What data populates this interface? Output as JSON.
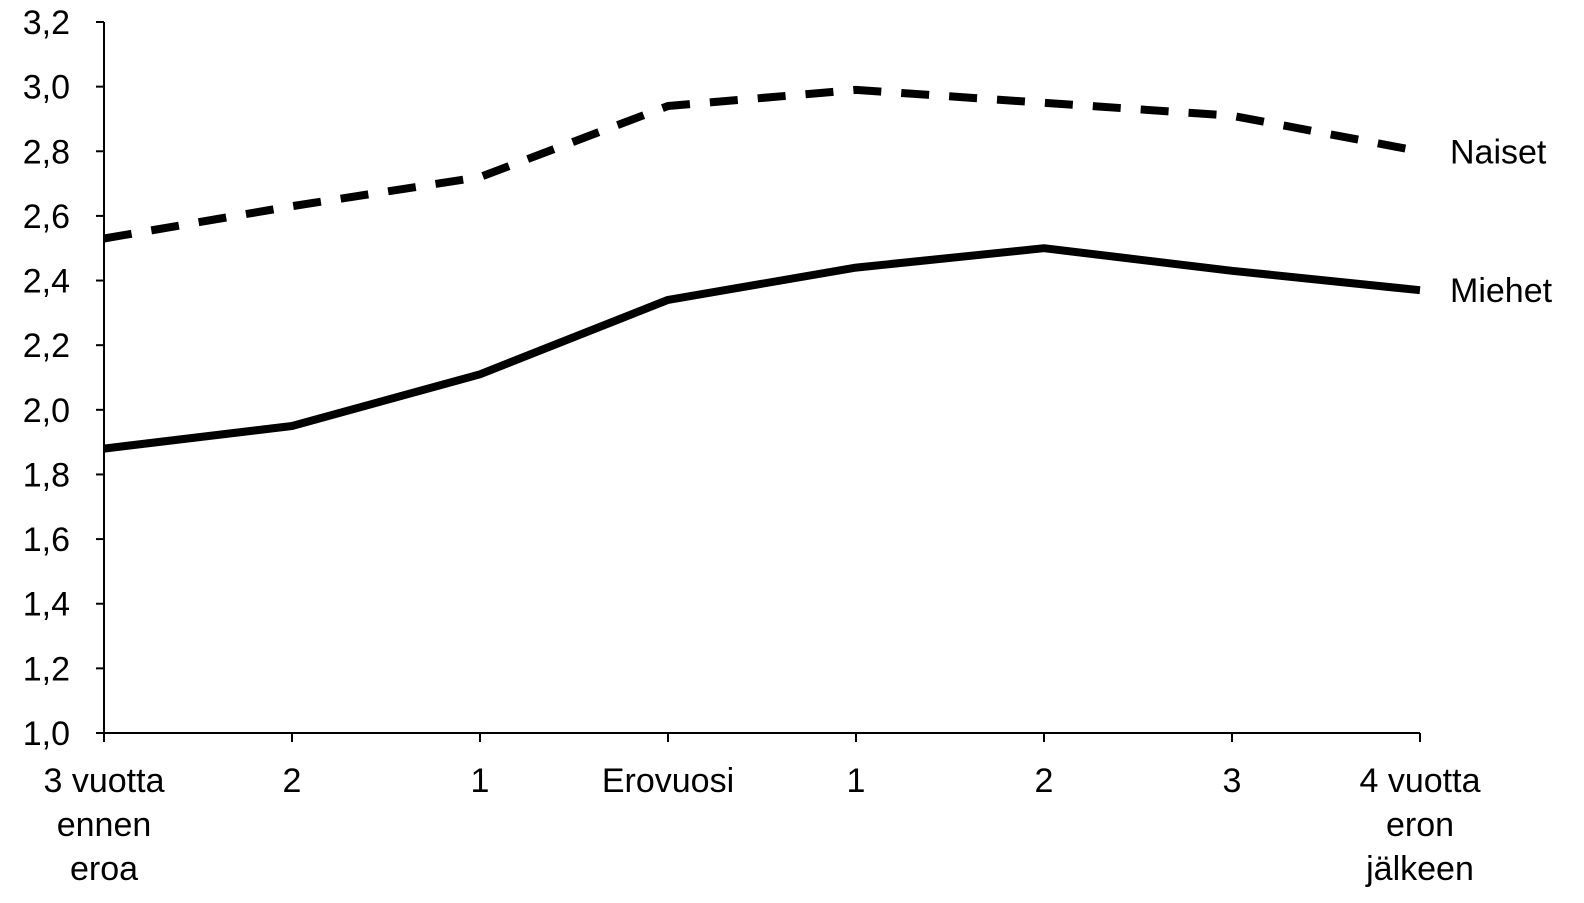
{
  "chart_data": {
    "type": "line",
    "title": "",
    "xlabel": "",
    "ylabel": "",
    "categories": [
      [
        "3 vuotta",
        "ennen",
        "eroa"
      ],
      [
        "2"
      ],
      [
        "1"
      ],
      [
        "Erovuosi"
      ],
      [
        "1"
      ],
      [
        "2"
      ],
      [
        "3"
      ],
      [
        "4 vuotta",
        "eron",
        "jälkeen"
      ]
    ],
    "ylim": [
      1.0,
      3.2
    ],
    "yticks": [
      "1,0",
      "1,2",
      "1,4",
      "1,6",
      "1,8",
      "2,0",
      "2,2",
      "2,4",
      "2,6",
      "2,8",
      "3,0",
      "3,2"
    ],
    "grid": false,
    "legend": "inline-right",
    "series": [
      {
        "name": "Naiset",
        "style": "dashed",
        "color": "#000000",
        "values": [
          2.53,
          2.63,
          2.72,
          2.94,
          2.99,
          2.95,
          2.91,
          2.8
        ]
      },
      {
        "name": "Miehet",
        "style": "solid",
        "color": "#000000",
        "values": [
          1.88,
          1.95,
          2.11,
          2.34,
          2.44,
          2.5,
          2.43,
          2.37
        ]
      }
    ]
  }
}
